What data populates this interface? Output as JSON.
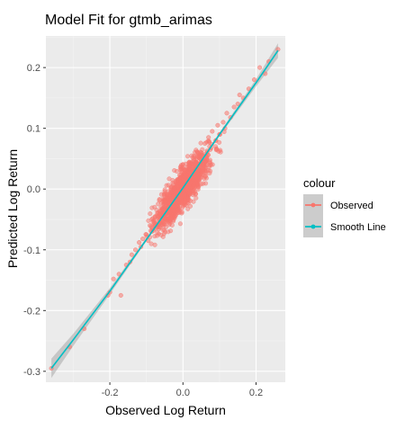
{
  "chart_data": {
    "type": "scatter",
    "title": "Model Fit for gtmb_arimas",
    "xlabel": "Observed Log Return",
    "ylabel": "Predicted Log Return",
    "xlim": [
      -0.375,
      0.28
    ],
    "ylim": [
      -0.318,
      0.252
    ],
    "x_ticks": [
      -0.2,
      0.0,
      0.2
    ],
    "x_tick_labels": [
      "-0.2",
      "0.0",
      "0.2"
    ],
    "y_ticks": [
      -0.3,
      -0.2,
      -0.1,
      0.0,
      0.1,
      0.2
    ],
    "y_tick_labels": [
      "-0.3",
      "-0.2",
      "-0.1",
      "0.0",
      "0.1",
      "0.2"
    ],
    "grid": true,
    "legend": {
      "title": "colour",
      "position": "right",
      "entries": [
        "Observed",
        "Smooth Line"
      ]
    },
    "colors": {
      "Observed": "#F8766D",
      "Smooth Line": "#00BFC4",
      "band": "#999999"
    },
    "series": [
      {
        "name": "Observed",
        "type": "scatter",
        "points": [
          [
            -0.36,
            -0.295
          ],
          [
            -0.31,
            -0.26
          ],
          [
            -0.27,
            -0.23
          ],
          [
            -0.205,
            -0.175
          ],
          [
            -0.2,
            -0.17
          ],
          [
            -0.19,
            -0.148
          ],
          [
            -0.175,
            -0.14
          ],
          [
            -0.17,
            -0.175
          ],
          [
            -0.155,
            -0.125
          ],
          [
            -0.145,
            -0.12
          ],
          [
            -0.14,
            -0.108
          ],
          [
            -0.13,
            -0.1
          ],
          [
            -0.12,
            -0.088
          ],
          [
            -0.115,
            -0.095
          ],
          [
            -0.11,
            -0.082
          ],
          [
            -0.1,
            -0.075
          ],
          [
            -0.095,
            -0.085
          ],
          [
            -0.09,
            -0.06
          ],
          [
            -0.085,
            -0.07
          ],
          [
            -0.08,
            -0.052
          ],
          [
            -0.075,
            -0.065
          ],
          [
            -0.07,
            -0.04
          ],
          [
            -0.065,
            -0.055
          ],
          [
            -0.06,
            -0.03
          ],
          [
            -0.055,
            -0.045
          ],
          [
            -0.05,
            -0.02
          ],
          [
            0.05,
            0.06
          ],
          [
            0.055,
            0.04
          ],
          [
            0.06,
            0.075
          ],
          [
            0.065,
            0.05
          ],
          [
            0.07,
            0.085
          ],
          [
            0.075,
            0.065
          ],
          [
            0.08,
            0.095
          ],
          [
            0.09,
            0.08
          ],
          [
            0.095,
            0.105
          ],
          [
            0.1,
            0.09
          ],
          [
            0.11,
            0.11
          ],
          [
            0.115,
            0.1
          ],
          [
            0.12,
            0.125
          ],
          [
            0.13,
            0.118
          ],
          [
            0.14,
            0.135
          ],
          [
            0.15,
            0.14
          ],
          [
            0.155,
            0.155
          ],
          [
            0.165,
            0.15
          ],
          [
            0.18,
            0.165
          ],
          [
            0.195,
            0.18
          ],
          [
            0.21,
            0.2
          ],
          [
            0.225,
            0.19
          ],
          [
            0.235,
            0.21
          ],
          [
            0.26,
            0.23
          ]
        ],
        "cloud": {
          "center": [
            0.0,
            0.0
          ],
          "sd_x": 0.035,
          "sd_y": 0.03,
          "correlation": 0.85,
          "n": 1300
        }
      },
      {
        "name": "Smooth Line",
        "type": "line",
        "points": [
          [
            -0.36,
            -0.295
          ],
          [
            -0.3,
            -0.248
          ],
          [
            -0.2,
            -0.168
          ],
          [
            -0.1,
            -0.083
          ],
          [
            0.0,
            0.002
          ],
          [
            0.1,
            0.09
          ],
          [
            0.2,
            0.175
          ],
          [
            0.26,
            0.228
          ]
        ],
        "band_halfwidth": [
          0.016,
          0.01,
          0.005,
          0.003,
          0.002,
          0.003,
          0.006,
          0.012
        ]
      }
    ]
  }
}
